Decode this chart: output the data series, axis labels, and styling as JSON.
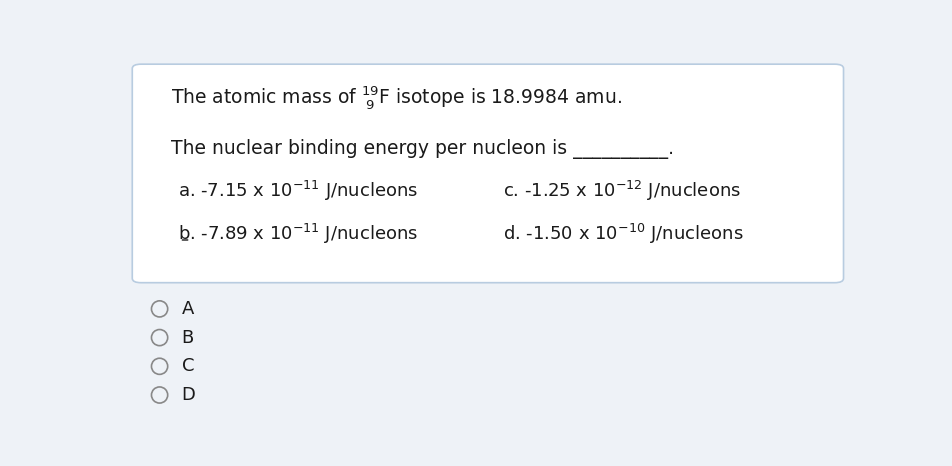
{
  "bg_color": "#eef2f7",
  "box_color": "#ffffff",
  "box_border_color": "#b8cce0",
  "text_color": "#1a1a1a",
  "radio_circle_color": "#888888",
  "radio_labels": [
    "A",
    "B",
    "C",
    "D"
  ],
  "font_size_main": 13.5,
  "font_size_options": 13.0,
  "font_size_radio": 13.0
}
